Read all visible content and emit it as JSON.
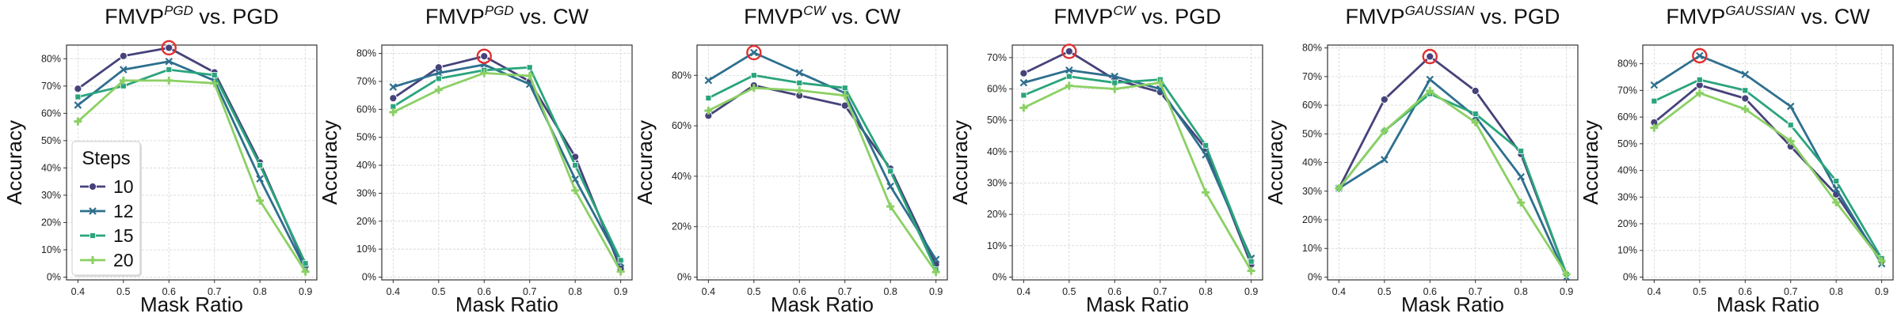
{
  "figure": {
    "xlabel": "Mask Ratio",
    "ylabel": "Accuracy",
    "legend_title": "Steps",
    "series_names": [
      "10",
      "12",
      "15",
      "20"
    ]
  },
  "colors": {
    "10": "#46427a",
    "12": "#2e6f8e",
    "15": "#2aa47c",
    "20": "#8bd064",
    "highlight": "#e03030",
    "grid": "#d9d9d9",
    "axis": "#333333"
  },
  "chart_data": [
    {
      "type": "line",
      "title": "FMVP",
      "title_sup": "PGD",
      "title_rest": " vs. PGD",
      "x": [
        0.4,
        0.5,
        0.6,
        0.7,
        0.8,
        0.9
      ],
      "ylim": [
        0,
        85
      ],
      "yticks": [
        0,
        10,
        20,
        30,
        40,
        50,
        60,
        70,
        80
      ],
      "series": [
        {
          "name": "10",
          "values": [
            69,
            81,
            84,
            75,
            42,
            4
          ]
        },
        {
          "name": "12",
          "values": [
            63,
            76,
            79,
            72,
            36,
            3
          ]
        },
        {
          "name": "15",
          "values": [
            66,
            70,
            76,
            74,
            41,
            5
          ]
        },
        {
          "name": "20",
          "values": [
            57,
            72,
            72,
            71,
            28,
            2
          ]
        }
      ],
      "highlight": {
        "series": "10",
        "x": 0.6,
        "value": 84
      },
      "legend": true
    },
    {
      "type": "line",
      "title": "FMVP",
      "title_sup": "PGD",
      "title_rest": " vs. CW",
      "x": [
        0.4,
        0.5,
        0.6,
        0.7,
        0.8,
        0.9
      ],
      "ylim": [
        0,
        83
      ],
      "yticks": [
        0,
        10,
        20,
        30,
        40,
        50,
        60,
        70,
        80
      ],
      "series": [
        {
          "name": "10",
          "values": [
            64,
            75,
            79,
            70,
            43,
            3
          ]
        },
        {
          "name": "12",
          "values": [
            68,
            73,
            76,
            69,
            35,
            5
          ]
        },
        {
          "name": "15",
          "values": [
            61,
            71,
            74,
            75,
            40,
            6
          ]
        },
        {
          "name": "20",
          "values": [
            59,
            67,
            73,
            72,
            31,
            2
          ]
        }
      ],
      "highlight": {
        "series": "10",
        "x": 0.6,
        "value": 79
      },
      "legend": false
    },
    {
      "type": "line",
      "title": "FMVP",
      "title_sup": "CW",
      "title_rest": " vs. CW",
      "x": [
        0.4,
        0.5,
        0.6,
        0.7,
        0.8,
        0.9
      ],
      "ylim": [
        0,
        92
      ],
      "yticks": [
        0,
        20,
        40,
        60,
        80
      ],
      "series": [
        {
          "name": "10",
          "values": [
            64,
            76,
            72,
            68,
            43,
            5
          ]
        },
        {
          "name": "12",
          "values": [
            78,
            89,
            81,
            73,
            36,
            7
          ]
        },
        {
          "name": "15",
          "values": [
            71,
            80,
            77,
            75,
            42,
            3
          ]
        },
        {
          "name": "20",
          "values": [
            66,
            75,
            74,
            72,
            28,
            2
          ]
        }
      ],
      "highlight": {
        "series": "12",
        "x": 0.5,
        "value": 89
      },
      "legend": false
    },
    {
      "type": "line",
      "title": "FMVP",
      "title_sup": "CW",
      "title_rest": " vs. PGD",
      "x": [
        0.4,
        0.5,
        0.6,
        0.7,
        0.8,
        0.9
      ],
      "ylim": [
        0,
        74
      ],
      "yticks": [
        0,
        10,
        20,
        30,
        40,
        50,
        60,
        70
      ],
      "series": [
        {
          "name": "10",
          "values": [
            65,
            72,
            63,
            59,
            41,
            4
          ]
        },
        {
          "name": "12",
          "values": [
            62,
            66,
            64,
            60,
            39,
            6
          ]
        },
        {
          "name": "15",
          "values": [
            58,
            64,
            62,
            63,
            42,
            5
          ]
        },
        {
          "name": "20",
          "values": [
            54,
            61,
            60,
            62,
            27,
            2
          ]
        }
      ],
      "highlight": {
        "series": "10",
        "x": 0.5,
        "value": 72
      },
      "legend": false
    },
    {
      "type": "line",
      "title": "FMVP",
      "title_sup": "GAUSSIAN",
      "title_rest": " vs. PGD",
      "x": [
        0.4,
        0.5,
        0.6,
        0.7,
        0.8,
        0.9
      ],
      "ylim": [
        0,
        81
      ],
      "yticks": [
        0,
        10,
        20,
        30,
        40,
        50,
        60,
        70,
        80
      ],
      "series": [
        {
          "name": "10",
          "values": [
            31,
            62,
            77,
            65,
            43,
            1
          ]
        },
        {
          "name": "12",
          "values": [
            31,
            41,
            69,
            56,
            35,
            0
          ]
        },
        {
          "name": "15",
          "values": [
            31,
            51,
            64,
            57,
            44,
            1
          ]
        },
        {
          "name": "20",
          "values": [
            31,
            51,
            65,
            54,
            26,
            1
          ]
        }
      ],
      "highlight": {
        "series": "10",
        "x": 0.6,
        "value": 77
      },
      "legend": false
    },
    {
      "type": "line",
      "title": "FMVP",
      "title_sup": "GAUSSIAN",
      "title_rest": " vs. CW",
      "x": [
        0.4,
        0.5,
        0.6,
        0.7,
        0.8,
        0.9
      ],
      "ylim": [
        0,
        87
      ],
      "yticks": [
        0,
        10,
        20,
        30,
        40,
        50,
        60,
        70,
        80
      ],
      "series": [
        {
          "name": "10",
          "values": [
            58,
            72,
            67,
            49,
            31,
            6
          ]
        },
        {
          "name": "12",
          "values": [
            72,
            83,
            76,
            64,
            33,
            5
          ]
        },
        {
          "name": "15",
          "values": [
            66,
            74,
            70,
            57,
            36,
            7
          ]
        },
        {
          "name": "20",
          "values": [
            56,
            69,
            63,
            51,
            28,
            6
          ]
        }
      ],
      "highlight": {
        "series": "12",
        "x": 0.5,
        "value": 83
      },
      "legend": false
    }
  ]
}
